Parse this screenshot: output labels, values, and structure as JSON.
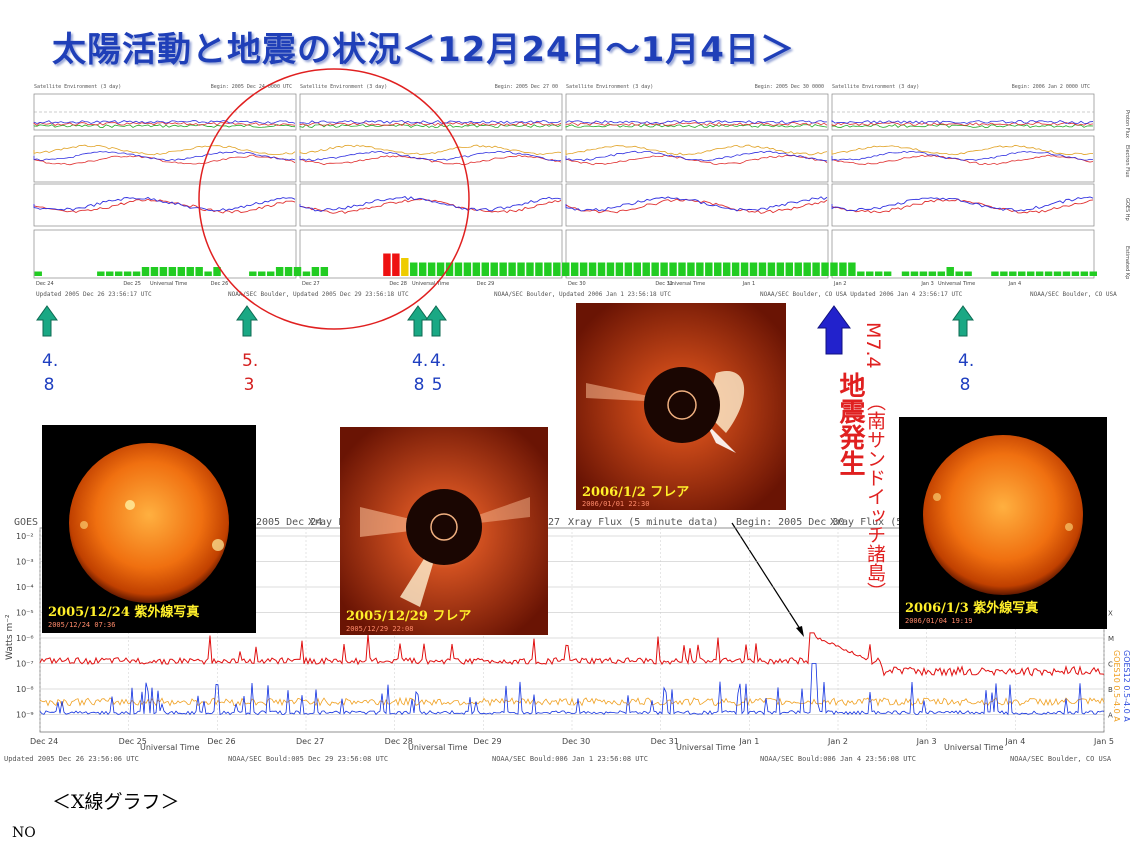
{
  "title": "太陽活動と地震の状況＜12月24日～1月4日＞",
  "satellite_panels": [
    {
      "header_left": "Satellite Environment (3 day)",
      "header_right": "Begin:  2005 Dec 24 0000 UTC"
    },
    {
      "header_left": "Satellite Environment (3 day)",
      "header_right": "Begin:  2005 Dec 27 00"
    },
    {
      "header_left": "Satellite Environment (3 day)",
      "header_right": "Begin:  2005 Dec 30 0000"
    },
    {
      "header_left": "Satellite Environment (3 day)",
      "header_right": "Begin:  2006 Jan 2 0000 UTC"
    }
  ],
  "satellite_axis_labels": [
    "Proton Flux",
    "Electron Flux",
    "GOES Hp",
    "Estimated Kp"
  ],
  "satellite_footers": [
    "Updated 2005 Dec 26 23:56:17 UTC",
    "NOAA/SEC Boulder, Updated 2005 Dec 29 23:56:18 UTC",
    "NOAA/SEC Boulder, Updated 2006 Jan  1 23:56:18 UTC",
    "NOAA/SEC Boulder, CO USA  Updated 2006 Jan  4 23:56:17 UTC",
    "NOAA/SEC Boulder, CO USA"
  ],
  "satellite_date_ticks": [
    "Dec 24",
    "Dec 25",
    "Dec 26",
    "Dec 27",
    "Dec 28",
    "Dec 29",
    "Dec 30",
    "Dec 31",
    "Jan 1",
    "Jan 2",
    "Jan 3",
    "Jan 4"
  ],
  "universal_time_label": "Universal Time",
  "kp_bars": [
    1,
    0,
    0,
    0,
    0,
    0,
    0,
    1,
    1,
    1,
    1,
    1,
    2,
    2,
    2,
    2,
    2,
    2,
    2,
    1,
    2,
    0,
    0,
    0,
    1,
    1,
    1,
    2,
    2,
    2,
    1,
    2,
    2,
    0,
    0,
    0,
    0,
    0,
    0,
    5,
    5,
    4,
    3,
    3,
    3,
    3,
    3,
    3,
    3,
    3,
    3,
    3,
    3,
    3,
    3,
    3,
    3,
    3,
    3,
    3,
    3,
    3,
    3,
    3,
    3,
    3,
    3,
    3,
    3,
    3,
    3,
    3,
    3,
    3,
    3,
    3,
    3,
    3,
    3,
    3,
    3,
    3,
    3,
    3,
    3,
    3,
    3,
    3,
    3,
    3,
    3,
    3,
    1,
    1,
    1,
    1,
    0,
    1,
    1,
    1,
    1,
    1,
    2,
    1,
    1,
    0,
    0,
    1,
    1,
    1,
    1,
    1,
    1,
    1,
    1,
    1,
    1,
    1,
    1
  ],
  "magnitudes": [
    {
      "value": "4.8",
      "color": "blue"
    },
    {
      "value": "5.3",
      "color": "red"
    },
    {
      "value": "4.8",
      "color": "blue"
    },
    {
      "value": "4.5",
      "color": "blue"
    },
    {
      "value": "4.8",
      "color": "blue"
    }
  ],
  "quake": {
    "magnitude": "M7.4",
    "location": "（南サンドイッチ諸島）",
    "label": "地震発生"
  },
  "photos": [
    {
      "caption": "2005/12/24  紫外線写真",
      "timestamp": "2005/12/24  07:36"
    },
    {
      "caption": "2005/12/29  フレア",
      "timestamp": "2005/12/29  22:08"
    },
    {
      "caption": "2006/1/2  フレア",
      "timestamp": "2006/01/01  22:30"
    },
    {
      "caption": "2006/1/3  紫外線写真",
      "timestamp": "2006/01/04  19:19"
    }
  ],
  "xray": {
    "headers": [
      "GOES",
      "2005 Dec 24",
      "Xray Flu",
      "27",
      "Xray Flux (5 minute data)",
      "Begin:  2005 Dec 30",
      "Xray Flux (5"
    ],
    "yaxis_label": "Watts m⁻²",
    "yticks": [
      "10⁻²",
      "10⁻³",
      "10⁻⁴",
      "10⁻⁵",
      "10⁻⁶",
      "10⁻⁷",
      "10⁻⁸",
      "10⁻⁹"
    ],
    "class_letters": [
      "X",
      "M",
      "C",
      "B",
      "A"
    ],
    "date_ticks": [
      "Dec 24",
      "Dec 25",
      "Dec 26",
      "Dec 27",
      "Dec 28",
      "Dec 29",
      "Dec 30",
      "Dec 31",
      "Jan 1",
      "Jan 2",
      "Jan 3",
      "Jan 4",
      "Jan 5"
    ],
    "universal_time_label": "Universal Time",
    "footers": [
      "Updated 2005 Dec 26 23:56:06 UTC",
      "NOAA/SEC Bould:005 Dec 29 23:56:08 UTC",
      "NOAA/SEC Bould:006 Jan  1 23:56:08 UTC",
      "NOAA/SEC Bould:006 Jan  4 23:56:08 UTC",
      "NOAA/SEC Boulder, CO USA"
    ],
    "legend": [
      "GOES10 0.5-4.0 A",
      "GOES12 0.5-4.0 A"
    ]
  },
  "xray_label": "＜X線グラフ＞",
  "no_label": "NO",
  "colors": {
    "title": "#1f3fb8",
    "kp_green": "#22cc22",
    "kp_red": "#ee1111",
    "kp_yellow": "#eecc00",
    "arrow_teal": "#1aa884",
    "quake_red": "#e02020",
    "quake_arrow": "#2222cc",
    "xray_red": "#e01010",
    "xray_blue": "#1030e0",
    "xray_orange": "#f0a020"
  }
}
